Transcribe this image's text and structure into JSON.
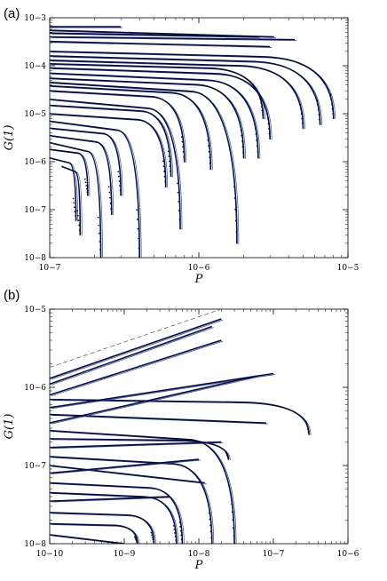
{
  "chart_data": [
    {
      "panel_label": "(a)",
      "type": "line",
      "xlabel": "P",
      "ylabel": "G(1)",
      "x_scale": "log",
      "y_scale": "log",
      "xlim": [
        1e-07,
        1e-05
      ],
      "ylim": [
        1e-08,
        0.001
      ],
      "x_ticks": [
        {
          "v": 1e-07,
          "label": "10−7"
        },
        {
          "v": 1e-06,
          "label": "10−6"
        },
        {
          "v": 1e-05,
          "label": "10−5"
        }
      ],
      "y_ticks": [
        {
          "v": 1e-08,
          "label": "10−8"
        },
        {
          "v": 1e-07,
          "label": "10−7"
        },
        {
          "v": 1e-06,
          "label": "10−6"
        },
        {
          "v": 1e-05,
          "label": "10−5"
        },
        {
          "v": 0.0001,
          "label": "10−4"
        },
        {
          "v": 0.001,
          "label": "10−3"
        }
      ],
      "curve_colors": {
        "black": "#0a0f2a",
        "blue": "#2a3fd0",
        "dots": "#000000"
      },
      "series": [
        {
          "start": [
            1e-07,
            0.00065
          ],
          "end": [
            3e-07,
            0.00065
          ]
        },
        {
          "start": [
            1e-07,
            0.00055
          ],
          "end": [
            3.2e-06,
            0.0004
          ]
        },
        {
          "start": [
            1e-07,
            0.00048
          ],
          "end": [
            2.5e-06,
            0.0004
          ]
        },
        {
          "start": [
            1e-07,
            0.0004
          ],
          "end": [
            4.4e-06,
            0.00035
          ]
        },
        {
          "start": [
            1e-07,
            0.00032
          ],
          "end": [
            3e-06,
            0.00025
          ]
        },
        {
          "start": [
            1e-07,
            0.0002
          ],
          "end": [
            8e-06,
            8e-06
          ]
        },
        {
          "start": [
            1e-07,
            0.00016
          ],
          "end": [
            6.5e-06,
            6e-06
          ]
        },
        {
          "start": [
            1e-07,
            0.00013
          ],
          "end": [
            5e-06,
            5e-06
          ]
        },
        {
          "start": [
            1e-07,
            0.00011
          ],
          "end": [
            2.7e-06,
            8e-06
          ]
        },
        {
          "start": [
            1e-07,
            9e-05
          ],
          "end": [
            3e-06,
            3e-06
          ]
        },
        {
          "start": [
            1e-07,
            7e-05
          ],
          "end": [
            2.5e-06,
            1.2e-06
          ]
        },
        {
          "start": [
            1e-07,
            5.5e-05
          ],
          "end": [
            2e-06,
            1.2e-06
          ]
        },
        {
          "start": [
            1e-07,
            4.5e-05
          ],
          "end": [
            1.8e-06,
            2e-08
          ]
        },
        {
          "start": [
            1e-07,
            3.8e-05
          ],
          "end": [
            1.2e-06,
            7e-07
          ]
        },
        {
          "start": [
            1e-07,
            3e-05
          ],
          "end": [
            8e-07,
            1e-06
          ]
        },
        {
          "start": [
            1e-07,
            2e-05
          ],
          "end": [
            7.5e-07,
            4e-08
          ]
        },
        {
          "start": [
            1e-07,
            1.5e-05
          ],
          "end": [
            6.5e-07,
            5e-07
          ]
        },
        {
          "start": [
            1e-07,
            1e-05
          ],
          "end": [
            6e-07,
            3e-07
          ]
        },
        {
          "start": [
            1e-07,
            7e-06
          ],
          "end": [
            4e-07,
            1e-08
          ]
        },
        {
          "start": [
            1e-07,
            5e-06
          ],
          "end": [
            3e-07,
            2e-07
          ]
        },
        {
          "start": [
            1e-07,
            3.5e-06
          ],
          "end": [
            2.6e-07,
            8e-08
          ]
        },
        {
          "start": [
            1e-07,
            2.5e-06
          ],
          "end": [
            2.2e-07,
            1e-08
          ]
        },
        {
          "start": [
            1e-07,
            1.8e-06
          ],
          "end": [
            1.8e-07,
            2e-07
          ]
        },
        {
          "start": [
            1e-07,
            1.2e-06
          ],
          "end": [
            1.5e-07,
            6e-08
          ]
        },
        {
          "start": [
            1.2e-07,
            8e-07
          ],
          "end": [
            1.6e-07,
            3e-08
          ]
        }
      ]
    },
    {
      "panel_label": "(b)",
      "type": "line",
      "xlabel": "P",
      "ylabel": "G(1)",
      "x_scale": "log",
      "y_scale": "log",
      "xlim": [
        1e-10,
        1e-06
      ],
      "ylim": [
        1e-08,
        1e-05
      ],
      "x_ticks": [
        {
          "v": 1e-10,
          "label": "10−10"
        },
        {
          "v": 1e-09,
          "label": "10−9"
        },
        {
          "v": 1e-08,
          "label": "10−8"
        },
        {
          "v": 1e-07,
          "label": "10−7"
        },
        {
          "v": 1e-06,
          "label": "10−6"
        }
      ],
      "y_ticks": [
        {
          "v": 1e-08,
          "label": "10−8"
        },
        {
          "v": 1e-07,
          "label": "10−7"
        },
        {
          "v": 1e-06,
          "label": "10−6"
        },
        {
          "v": 1e-05,
          "label": "10−5"
        }
      ],
      "curve_colors": {
        "black": "#0a0f2a",
        "blue": "#2a3fd0",
        "dots": "#000000",
        "dashed": "#666666"
      },
      "dashed_line": {
        "start": [
          1e-10,
          1.8e-06
        ],
        "end": [
          2e-08,
          1e-05
        ]
      },
      "series": [
        {
          "start": [
            1e-10,
            1.3e-06
          ],
          "end": [
            2e-08,
            7.5e-06
          ]
        },
        {
          "start": [
            1e-10,
            1.1e-06
          ],
          "end": [
            1.5e-08,
            6e-06
          ]
        },
        {
          "start": [
            1e-10,
            8e-07
          ],
          "end": [
            2e-08,
            4e-06
          ]
        },
        {
          "start": [
            1e-10,
            7e-07
          ],
          "end": [
            3e-07,
            2.5e-07
          ]
        },
        {
          "start": [
            1e-10,
            5.5e-07
          ],
          "end": [
            1e-07,
            1.5e-06
          ]
        },
        {
          "start": [
            1e-10,
            4.5e-07
          ],
          "end": [
            8e-08,
            3.5e-07
          ]
        },
        {
          "start": [
            1e-10,
            3.5e-07
          ],
          "end": [
            6e-08,
            1.4e-06
          ]
        },
        {
          "start": [
            1e-10,
            2.8e-07
          ],
          "end": [
            3e-08,
            1e-08
          ]
        },
        {
          "start": [
            1e-10,
            2.2e-07
          ],
          "end": [
            2.5e-08,
            1.2e-07
          ]
        },
        {
          "start": [
            1e-10,
            1.7e-07
          ],
          "end": [
            2e-08,
            2e-07
          ]
        },
        {
          "start": [
            1e-10,
            1.3e-07
          ],
          "end": [
            1.5e-08,
            1e-08
          ]
        },
        {
          "start": [
            1e-10,
            1e-07
          ],
          "end": [
            1.2e-08,
            6e-08
          ]
        },
        {
          "start": [
            1e-10,
            8e-08
          ],
          "end": [
            1e-08,
            1.2e-07
          ]
        },
        {
          "start": [
            1e-10,
            6e-08
          ],
          "end": [
            6e-09,
            1e-08
          ]
        },
        {
          "start": [
            1e-10,
            4.5e-08
          ],
          "end": [
            5e-09,
            1e-08
          ]
        },
        {
          "start": [
            1e-10,
            3.5e-08
          ],
          "end": [
            4e-09,
            4e-08
          ]
        },
        {
          "start": [
            1e-10,
            2.5e-08
          ],
          "end": [
            2.5e-09,
            1e-08
          ]
        },
        {
          "start": [
            1e-10,
            1.8e-08
          ],
          "end": [
            1.5e-09,
            1e-08
          ]
        },
        {
          "start": [
            1e-10,
            1.3e-08
          ],
          "end": [
            1e-09,
            1e-08
          ]
        }
      ]
    }
  ]
}
